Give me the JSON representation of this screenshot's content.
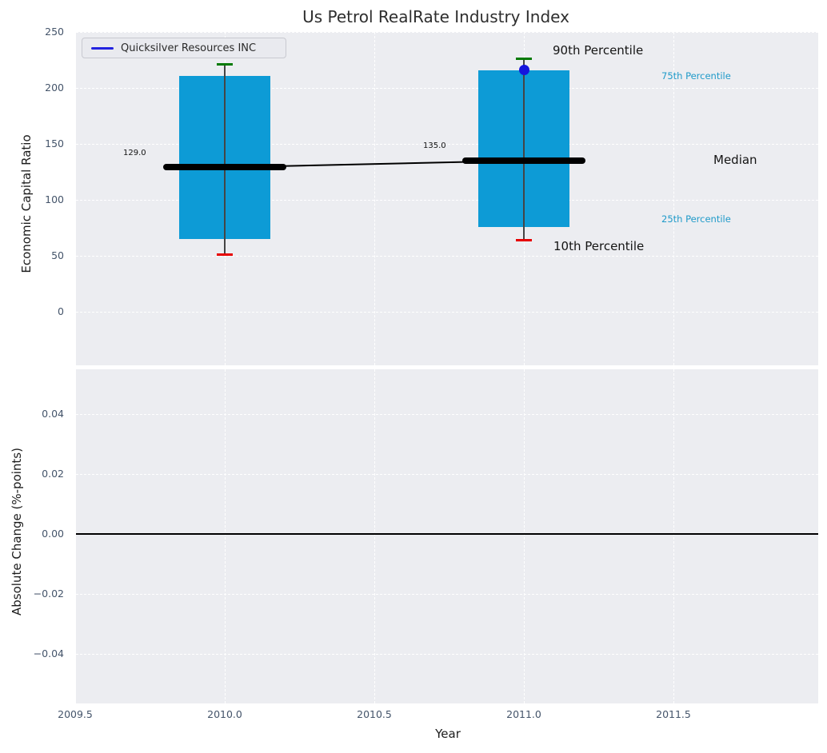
{
  "title": "Us Petrol RealRate Industry Index",
  "legend": {
    "label": "Quicksilver Resources INC"
  },
  "colors": {
    "box_fill": "#0d9bd6",
    "p90_cap": "#047a04",
    "p10_cap": "#e60000",
    "median_bar": "#000000",
    "median_connector": "#000000",
    "company_dot": "#1515dd",
    "legend_line": "#2323e0",
    "percentile_label_accent": "#1f9ac9",
    "zero_line": "#000000",
    "grid": "#ffffff",
    "plot_bg": "#ecedf1",
    "tick_label": "#44546a"
  },
  "annotations": {
    "p90": "90th Percentile",
    "p75": "75th Percentile",
    "median": "Median",
    "p25": "25th Percentile",
    "p10": "10th Percentile",
    "median_value_2010": "129.0",
    "median_value_2011": "135.0"
  },
  "chart_data": {
    "type": "box",
    "title": "Us Petrol RealRate Industry Index",
    "xlabel": "Year",
    "x_axis": {
      "tick_labels": [
        "2009.5",
        "2010.0",
        "2010.5",
        "2011.0",
        "2011.5"
      ],
      "tick_values": [
        2009.5,
        2010.0,
        2010.5,
        2011.0,
        2011.5
      ],
      "grid_values": [
        2010.0,
        2010.5,
        2011.0,
        2011.5
      ],
      "xlim": [
        2009.5,
        2011.99
      ]
    },
    "top_panel": {
      "ylabel": "Economic Capital Ratio",
      "ylim": [
        -48,
        250
      ],
      "ytick_values": [
        250,
        200,
        150,
        100,
        50,
        0
      ],
      "ytick_labels": [
        "250",
        "200",
        "150",
        "100",
        "50",
        "0"
      ],
      "series_label": "Quicksilver Resources INC",
      "boxes": [
        {
          "year": 2010,
          "p10": 51,
          "p25": 65,
          "median": 129.0,
          "p75": 211,
          "p90": 221
        },
        {
          "year": 2011,
          "p10": 64,
          "p25": 76,
          "median": 135.0,
          "p75": 216,
          "p90": 226,
          "company_value": 216
        }
      ],
      "median_trend": [
        {
          "year": 2010,
          "value": 129.0
        },
        {
          "year": 2011,
          "value": 135.0
        }
      ]
    },
    "bottom_panel": {
      "ylabel": "Absolute Change (%-points)",
      "ylim": [
        -0.056,
        0.055
      ],
      "ytick_values": [
        0.04,
        0.02,
        0,
        -0.02,
        -0.04
      ],
      "ytick_labels": [
        "0.04",
        "0.02",
        "0.00",
        "−0.02",
        "−0.04"
      ],
      "zero_line_y": 0.0
    }
  }
}
